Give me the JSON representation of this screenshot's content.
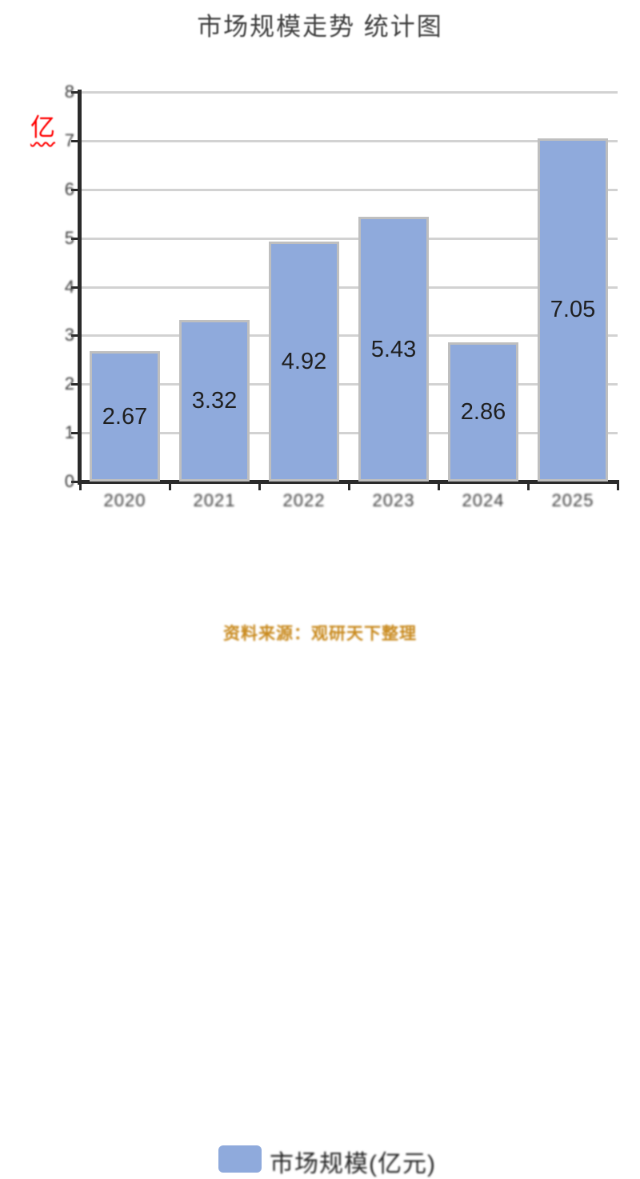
{
  "chart_data": {
    "type": "bar",
    "title": "市场规模走势 统计图",
    "y_axis_unit": "亿",
    "categories": [
      "2020",
      "2021",
      "2022",
      "2023",
      "2024",
      "2025"
    ],
    "values": [
      2.67,
      3.32,
      4.92,
      5.43,
      2.86,
      7.05
    ],
    "value_labels": [
      "2.67",
      "3.32",
      "4.92",
      "5.43",
      "2.86",
      "7.05"
    ],
    "ylim": [
      0,
      8
    ],
    "yticks": [
      "0",
      "1",
      "2",
      "3",
      "4",
      "5",
      "6",
      "7",
      "8"
    ],
    "grid": true,
    "legend": {
      "label": "市场规模(亿元)",
      "position": "bottom"
    },
    "source_note": "资料来源：观研天下整理",
    "colors": {
      "bar_fill": "#8faadc",
      "bar_border": "#bfbfbf",
      "gridline": "#d2d2d2",
      "axis": "#2b2b2b",
      "tick_text": "#3a3a3a",
      "value_text": "#1f1f1f",
      "title_text": "#3f3f3f",
      "unit_text": "#ff0000",
      "source_text": "#c8891d"
    }
  }
}
